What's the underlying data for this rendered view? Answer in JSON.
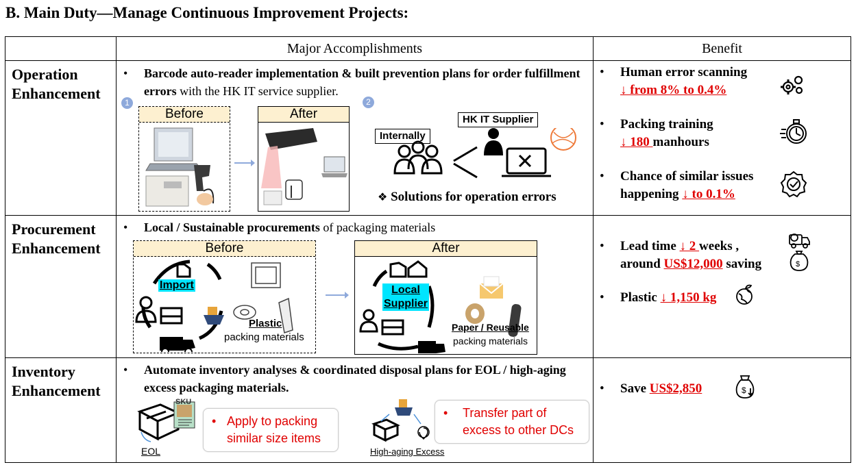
{
  "title": "B.  Main Duty—Manage Continuous Improvement Projects:",
  "headers": {
    "accomplishments": "Major Accomplishments",
    "benefit": "Benefit"
  },
  "rows": {
    "operation": {
      "category": [
        "Operation",
        "Enhancement"
      ],
      "bullet_bold": "Barcode auto-reader implementation & built prevention plans for order fulfillment errors",
      "bullet_rest": " with the HK IT service supplier.",
      "num1": "1",
      "num2": "2",
      "before": "Before",
      "after": "After",
      "internally": "Internally",
      "hk_supplier": "HK IT Supplier",
      "solutions": "Solutions for operation errors",
      "benefits": [
        {
          "pre": "Human error scanning",
          "red": "↓ from 8% to 0.4%",
          "post": ""
        },
        {
          "pre": "Packing training",
          "red": "↓ 180 ",
          "post": "manhours"
        },
        {
          "pre": "Chance of similar issues happening",
          "red": "↓ to 0.1%",
          "post": ""
        }
      ]
    },
    "procurement": {
      "category": [
        "Procurement",
        "Enhancement"
      ],
      "bullet_bold": "Local / Sustainable  procurements",
      "bullet_rest": " of packaging materials",
      "before": "Before",
      "after": "After",
      "import": "Import",
      "plastic": "Plastic",
      "packing_materials": "packing materials",
      "local": "Local",
      "supplier": "Supplier",
      "paper_reusable": "Paper / Reusable",
      "packing_materials2": "packing materials",
      "benefits": [
        {
          "pre": "Lead time ",
          "red": "↓ 2 ",
          "post": "weeks ,",
          "line2_pre": "around ",
          "line2_red": "US$12,000",
          "line2_post": " saving"
        },
        {
          "pre": "Plastic ",
          "red": "↓ 1,150 kg",
          "post": ""
        }
      ]
    },
    "inventory": {
      "category": [
        "Inventory",
        "Enhancement"
      ],
      "bullet_bold": "Automate inventory analyses & coordinated disposal plans for EOL / high-aging excess packaging materials.",
      "sku": "SKU",
      "eol": "EOL",
      "callout1": "Apply to packing similar size items",
      "high_aging": "High-aging Excess",
      "callout2": "Transfer part of excess to other DCs",
      "benefits": [
        {
          "pre": "Save ",
          "red": "US$2,850",
          "post": ""
        }
      ]
    }
  },
  "colors": {
    "accent_red": "#e00000",
    "before_fill": "#fdf0d0",
    "highlight": "#00e5ff",
    "step_circle": "#8ea9db"
  }
}
